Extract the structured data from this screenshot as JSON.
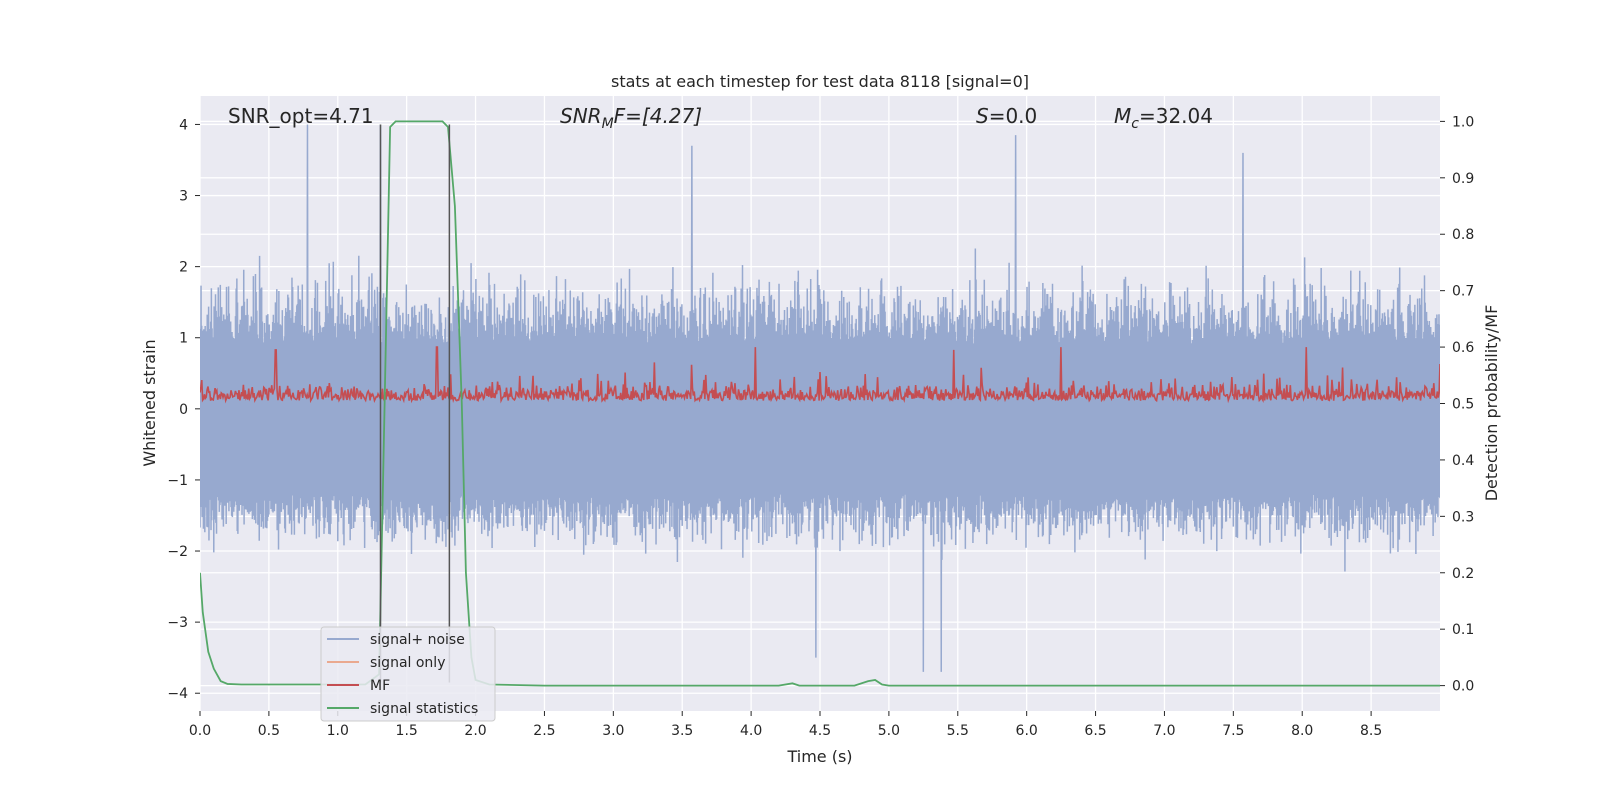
{
  "chart_data": {
    "type": "line",
    "title": "stats at each timestep for test data 8118 [signal=0]",
    "xlabel": "Time (s)",
    "ylabel": "Whitened strain",
    "ylabel_right": "Detection probability/MF",
    "xlim": [
      0.0,
      9.0
    ],
    "ylim": [
      -4.25,
      4.4
    ],
    "ylim_right": [
      -0.045,
      1.045
    ],
    "x_ticks": [
      0.0,
      0.5,
      1.0,
      1.5,
      2.0,
      2.5,
      3.0,
      3.5,
      4.0,
      4.5,
      5.0,
      5.5,
      6.0,
      6.5,
      7.0,
      7.5,
      8.0,
      8.5
    ],
    "x_tick_labels": [
      "0.0",
      "0.5",
      "1.0",
      "1.5",
      "2.0",
      "2.5",
      "3.0",
      "3.5",
      "4.0",
      "4.5",
      "5.0",
      "5.5",
      "6.0",
      "6.5",
      "7.0",
      "7.5",
      "8.0",
      "8.5"
    ],
    "y_ticks": [
      -4,
      -3,
      -2,
      -1,
      0,
      1,
      2,
      3,
      4
    ],
    "y_tick_labels": [
      "−4",
      "−3",
      "−2",
      "−1",
      "0",
      "1",
      "2",
      "3",
      "4"
    ],
    "y_ticks_right": [
      0.0,
      0.1,
      0.2,
      0.3,
      0.4,
      0.5,
      0.6,
      0.7,
      0.8,
      0.9,
      1.0
    ],
    "y_tick_labels_right": [
      "0.0",
      "0.1",
      "0.2",
      "0.3",
      "0.4",
      "0.5",
      "0.6",
      "0.7",
      "0.8",
      "0.9",
      "1.0"
    ],
    "grid": true,
    "legend_position": "lower-left",
    "annotations": {
      "snr_opt": "SNR_opt=4.71",
      "snr_mf_main": "SNR",
      "snr_mf_sub": "M",
      "snr_mf_tail": "F=[4.27]",
      "s_main": "S",
      "s_tail": "=0.0",
      "mc_main": "M",
      "mc_sub": "c",
      "mc_tail": "=32.04"
    },
    "vertical_lines": [
      1.31,
      1.81
    ],
    "series": [
      {
        "name": "signal+ noise",
        "color": "#97a9cf",
        "axis": "left",
        "description_range": [
          -4.0,
          4.0
        ],
        "sample_rate_hz": 400,
        "typical_envelope": [
          -1.6,
          2.6
        ],
        "peaks": [
          [
            0.78,
            4.0
          ],
          [
            1.31,
            4.0
          ],
          [
            3.57,
            3.7
          ],
          [
            5.92,
            3.85
          ],
          [
            7.57,
            3.6
          ],
          [
            5.25,
            -3.7
          ],
          [
            5.38,
            -3.7
          ],
          [
            4.47,
            -3.5
          ]
        ]
      },
      {
        "name": "signal only",
        "color": "#eaa98f",
        "axis": "left",
        "values": []
      },
      {
        "name": "MF",
        "color": "#c44e52",
        "axis": "right",
        "baseline": 0.52,
        "range": [
          0.5,
          0.6
        ],
        "peaks": [
          [
            0.55,
            0.595
          ],
          [
            1.72,
            0.6
          ],
          [
            4.03,
            0.6
          ],
          [
            5.47,
            0.595
          ],
          [
            6.25,
            0.6
          ],
          [
            8.03,
            0.6
          ],
          [
            9.0,
            0.57
          ]
        ]
      },
      {
        "name": "signal statistics",
        "color": "#55a868",
        "axis": "right",
        "x": [
          0.0,
          0.02,
          0.06,
          0.1,
          0.15,
          0.2,
          0.3,
          0.6,
          1.0,
          1.2,
          1.3,
          1.34,
          1.38,
          1.42,
          1.5,
          1.7,
          1.76,
          1.8,
          1.85,
          1.9,
          1.93,
          1.97,
          2.0,
          2.1,
          2.5,
          4.2,
          4.3,
          4.35,
          4.75,
          4.85,
          4.9,
          4.95,
          5.0,
          9.0
        ],
        "values": [
          0.2,
          0.13,
          0.06,
          0.03,
          0.008,
          0.003,
          0.002,
          0.002,
          0.002,
          0.002,
          0.02,
          0.5,
          0.99,
          1.0,
          1.0,
          1.0,
          1.0,
          0.99,
          0.85,
          0.5,
          0.2,
          0.05,
          0.01,
          0.002,
          0.0,
          0.0,
          0.004,
          0.0,
          0.0,
          0.008,
          0.01,
          0.002,
          0.0,
          0.0
        ]
      }
    ]
  }
}
